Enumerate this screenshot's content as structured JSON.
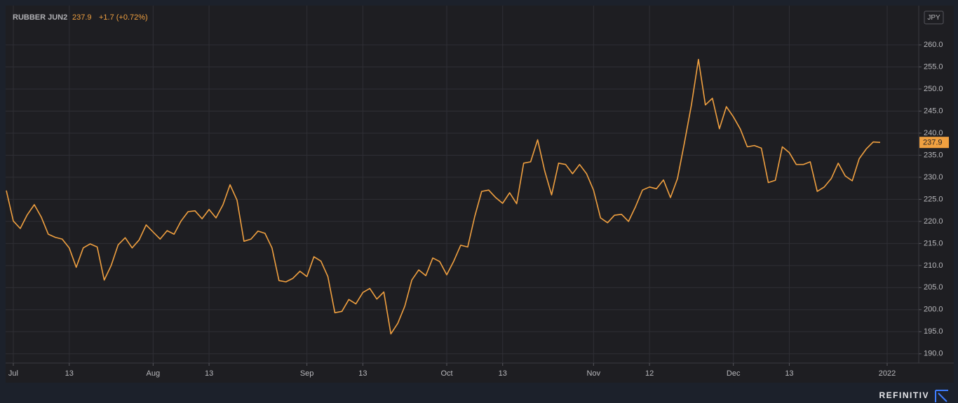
{
  "chart_data": {
    "type": "line",
    "title": "RUBBER JUN2",
    "change": "+1.7 (+0.72%)",
    "currency": "JPY",
    "watermark": "REFINITIV",
    "grid": true,
    "ylim": [
      187.9,
      268.9
    ],
    "yticks": [
      {
        "value": 190,
        "label": "190.0"
      },
      {
        "value": 195,
        "label": "195.0"
      },
      {
        "value": 200,
        "label": "200.0"
      },
      {
        "value": 205,
        "label": "205.0"
      },
      {
        "value": 210,
        "label": "210.0"
      },
      {
        "value": 215,
        "label": "215.0"
      },
      {
        "value": 220,
        "label": "220.0"
      },
      {
        "value": 225,
        "label": "225.0"
      },
      {
        "value": 230,
        "label": "230.0"
      },
      {
        "value": 235,
        "label": "235.0"
      },
      {
        "value": 240,
        "label": "240.0"
      },
      {
        "value": 245,
        "label": "245.0"
      },
      {
        "value": 250,
        "label": "250.0"
      },
      {
        "value": 255,
        "label": "255.0"
      },
      {
        "value": 260,
        "label": "260.0"
      }
    ],
    "categories": [
      null,
      "Jul",
      null,
      null,
      null,
      null,
      null,
      null,
      null,
      "13",
      null,
      null,
      null,
      null,
      null,
      null,
      null,
      null,
      null,
      null,
      null,
      "Aug",
      null,
      null,
      null,
      null,
      null,
      null,
      null,
      "13",
      null,
      null,
      null,
      null,
      null,
      null,
      null,
      null,
      null,
      null,
      null,
      null,
      null,
      "Sep",
      null,
      null,
      null,
      null,
      null,
      null,
      null,
      "13",
      null,
      null,
      null,
      null,
      null,
      null,
      null,
      null,
      null,
      null,
      null,
      "Oct",
      null,
      null,
      null,
      null,
      null,
      null,
      null,
      "13",
      null,
      null,
      null,
      null,
      null,
      null,
      null,
      null,
      null,
      null,
      null,
      null,
      "Nov",
      null,
      null,
      null,
      null,
      null,
      null,
      null,
      "12",
      null,
      null,
      null,
      null,
      null,
      null,
      null,
      null,
      null,
      null,
      null,
      "Dec",
      null,
      null,
      null,
      null,
      null,
      null,
      null,
      "13",
      null,
      null,
      null,
      null,
      null,
      null,
      null,
      null,
      null,
      null,
      null,
      null,
      null,
      "2022"
    ],
    "series": [
      {
        "name": "RUBBER JUN2",
        "color": "#f0a040",
        "values": [
          227,
          220.1,
          218.4,
          221.5,
          223.8,
          221,
          217.1,
          216.4,
          216,
          214,
          209.6,
          214,
          214.9,
          214.2,
          206.7,
          210,
          214.7,
          216.3,
          214,
          215.8,
          219.2,
          217.6,
          216,
          217.9,
          217.1,
          220.1,
          222.2,
          222.4,
          220.6,
          222.7,
          220.8,
          223.8,
          228.3,
          224.8,
          215.5,
          216,
          217.8,
          217.3,
          214,
          206.6,
          206.3,
          207.1,
          208.7,
          207.5,
          212,
          211,
          207.5,
          199.3,
          199.6,
          202.3,
          201.3,
          203.9,
          204.8,
          202.4,
          204,
          194.5,
          196.9,
          200.8,
          206.7,
          209,
          207.7,
          211.7,
          210.9,
          207.9,
          211,
          214.6,
          214.2,
          221.1,
          226.8,
          227.1,
          225.4,
          224.1,
          226.5,
          224,
          233.2,
          233.5,
          238.5,
          231.5,
          226,
          233.2,
          232.9,
          230.8,
          232.9,
          230.8,
          227.1,
          220.8,
          219.7,
          221.4,
          221.6,
          220,
          223.3,
          227.1,
          227.8,
          227.4,
          229.4,
          225.4,
          229.7,
          237.8,
          246.4,
          256.7,
          246.4,
          247.9,
          241,
          246,
          243.7,
          240.9,
          236.9,
          237.2,
          236.6,
          228.8,
          229.3,
          236.9,
          235.6,
          232.9,
          232.9,
          233.5,
          226.8,
          227.8,
          229.7,
          233.2,
          230.3,
          229.2,
          234.2,
          236.4,
          238,
          237.9,
          null
        ]
      }
    ]
  }
}
